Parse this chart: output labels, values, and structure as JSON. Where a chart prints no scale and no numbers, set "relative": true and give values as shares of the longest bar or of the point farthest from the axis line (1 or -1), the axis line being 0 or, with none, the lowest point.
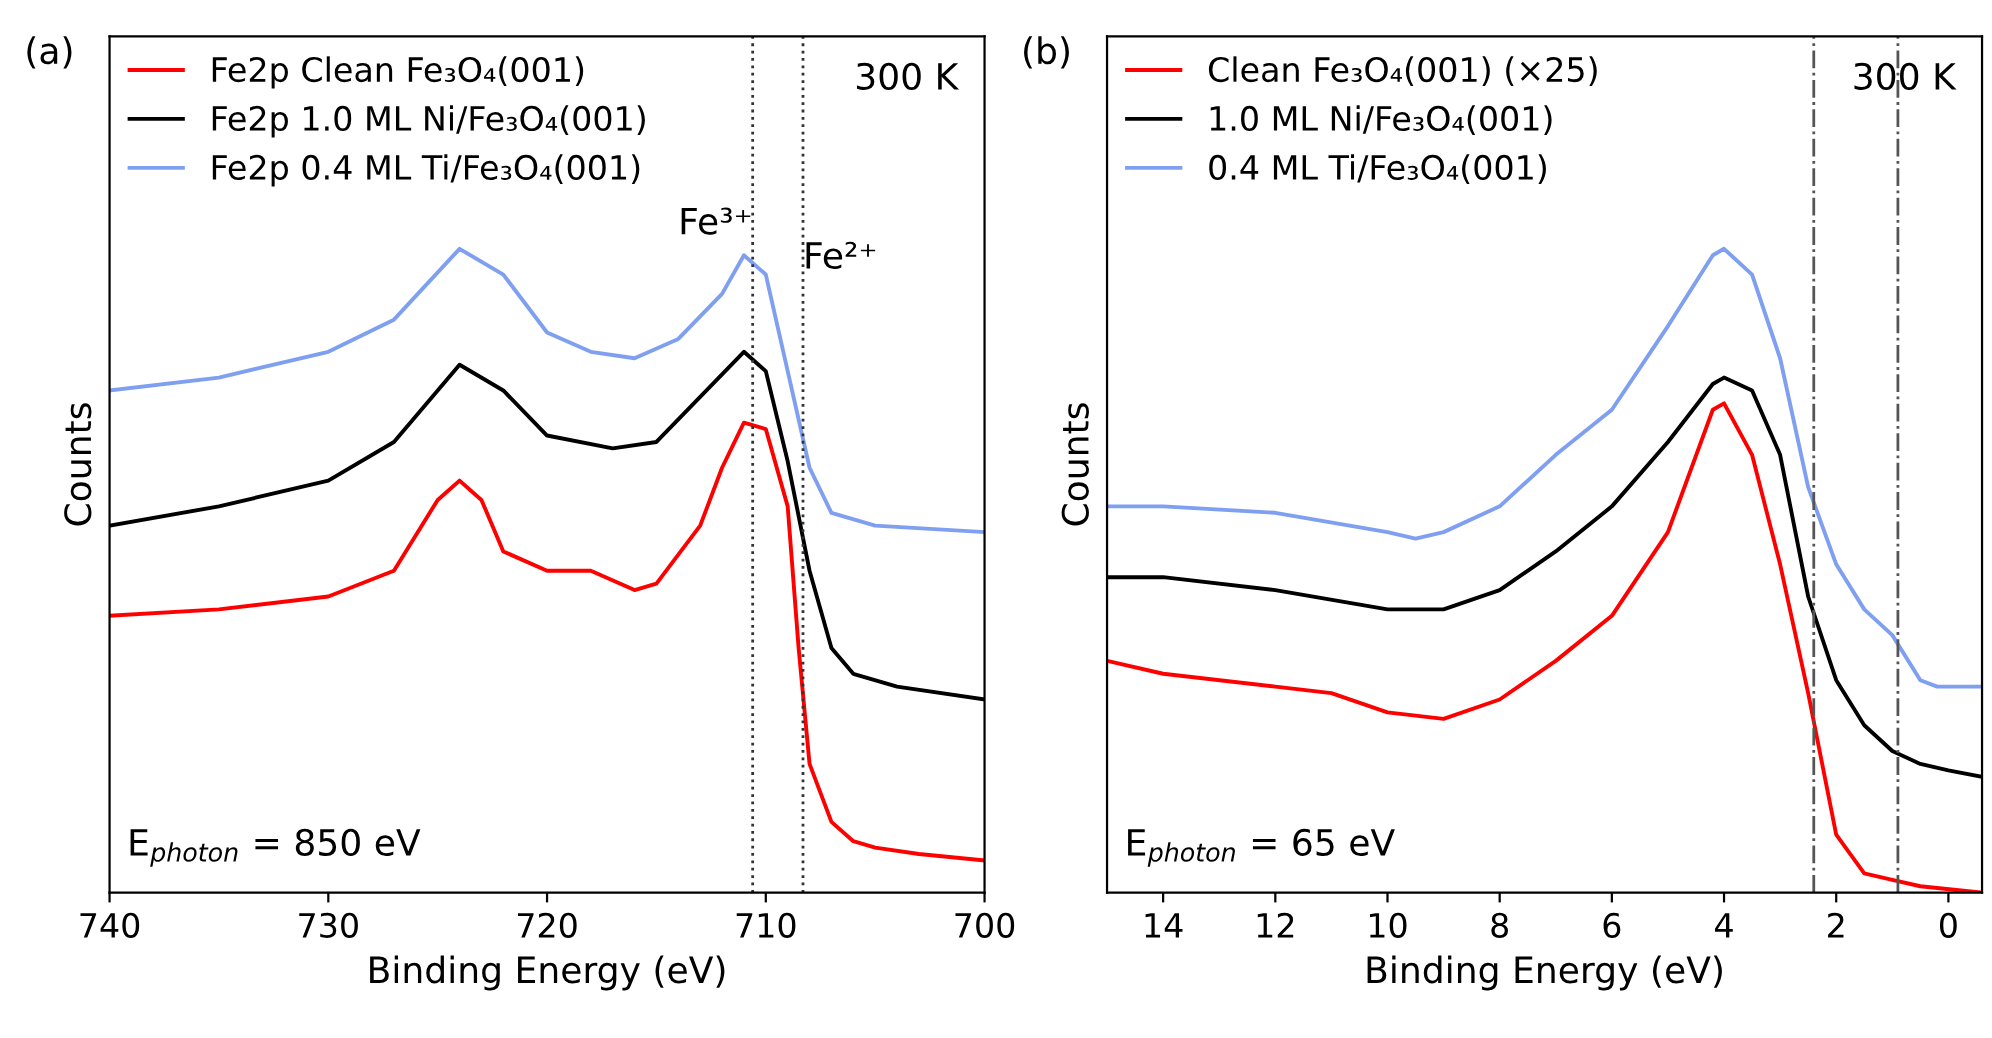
{
  "chart_data": [
    {
      "type": "line",
      "relative": true,
      "xlabel": "Binding Energy (eV)",
      "ylabel": "Counts",
      "xlim": [
        740,
        700
      ],
      "xticks": [
        740,
        730,
        720,
        710,
        700
      ],
      "tick_labels": "x",
      "legend": "top left",
      "grid": false,
      "line_style": "solid",
      "marker": "none",
      "annotations": [
        "(a)",
        "300 K",
        "E$_{photon}$ = 850 eV"
      ],
      "ref_lines": [
        {
          "axis": "x",
          "value": 710.6,
          "label": "Fe³⁺",
          "color": "#333333",
          "line_style": "dotted"
        },
        {
          "axis": "x",
          "value": 708.3,
          "label": "Fe²⁺",
          "color": "#333333",
          "line_style": "dotted"
        }
      ],
      "series": [
        {
          "name": "Fe2p Clean Fe₃O₄(001)",
          "color": "#ff0000",
          "x": [
            740,
            735,
            730,
            727,
            725,
            724,
            723,
            722,
            720,
            718,
            716,
            715,
            713,
            712,
            711,
            710,
            709,
            708.5,
            708,
            707,
            706,
            705,
            703,
            700
          ],
          "values": [
            0.43,
            0.44,
            0.46,
            0.5,
            0.61,
            0.64,
            0.61,
            0.53,
            0.5,
            0.5,
            0.47,
            0.48,
            0.57,
            0.66,
            0.73,
            0.72,
            0.6,
            0.38,
            0.2,
            0.11,
            0.08,
            0.07,
            0.06,
            0.05
          ]
        },
        {
          "name": "Fe2p 1.0 ML Ni/Fe₃O₄(001)",
          "color": "#000000",
          "x": [
            740,
            735,
            730,
            727,
            724,
            722,
            720,
            717,
            715,
            713,
            711,
            710,
            709,
            708,
            707,
            706,
            704,
            700
          ],
          "values": [
            0.57,
            0.6,
            0.64,
            0.7,
            0.82,
            0.78,
            0.71,
            0.69,
            0.7,
            0.77,
            0.84,
            0.81,
            0.67,
            0.5,
            0.38,
            0.34,
            0.32,
            0.3
          ]
        },
        {
          "name": "Fe2p 0.4 ML Ti/Fe₃O₄(001)",
          "color": "#7f9ff0",
          "x": [
            740,
            735,
            730,
            727,
            724,
            722,
            720,
            718,
            716,
            714,
            712,
            711,
            710,
            709,
            708,
            707,
            705,
            700
          ],
          "values": [
            0.78,
            0.8,
            0.84,
            0.89,
            1.0,
            0.96,
            0.87,
            0.84,
            0.83,
            0.86,
            0.93,
            0.99,
            0.96,
            0.81,
            0.66,
            0.59,
            0.57,
            0.56
          ]
        }
      ]
    },
    {
      "type": "line",
      "relative": true,
      "xlabel": "Binding Energy (eV)",
      "ylabel": "Counts",
      "xlim": [
        15,
        -0.6
      ],
      "xticks": [
        14,
        12,
        10,
        8,
        6,
        4,
        2,
        0
      ],
      "tick_labels": "x",
      "legend": "top left",
      "grid": false,
      "line_style": "solid",
      "marker": "none",
      "annotations": [
        "(b)",
        "300 K",
        "E$_{photon}$ = 65 eV"
      ],
      "ref_lines": [
        {
          "axis": "x",
          "value": 2.4,
          "color": "#555555",
          "line_style": "dashdot"
        },
        {
          "axis": "x",
          "value": 0.9,
          "color": "#555555",
          "line_style": "dashdot"
        }
      ],
      "series": [
        {
          "name": "Clean Fe₃O₄(001) (×25)",
          "color": "#ff0000",
          "x": [
            15,
            14,
            12,
            11,
            10,
            9,
            8,
            7,
            6,
            5,
            4.2,
            4,
            3.5,
            3,
            2.5,
            2,
            1.5,
            1,
            0.5,
            -0.6
          ],
          "values": [
            0.36,
            0.34,
            0.32,
            0.31,
            0.28,
            0.27,
            0.3,
            0.36,
            0.43,
            0.56,
            0.75,
            0.76,
            0.68,
            0.51,
            0.31,
            0.09,
            0.03,
            0.02,
            0.01,
            0.0
          ]
        },
        {
          "name": "1.0 ML Ni/Fe₃O₄(001)",
          "color": "#000000",
          "x": [
            15,
            14,
            12,
            10,
            9,
            8,
            7,
            6,
            5,
            4.2,
            4,
            3.5,
            3,
            2.5,
            2,
            1.5,
            1,
            0.5,
            0,
            -0.6
          ],
          "values": [
            0.49,
            0.49,
            0.47,
            0.44,
            0.44,
            0.47,
            0.53,
            0.6,
            0.7,
            0.79,
            0.8,
            0.78,
            0.68,
            0.46,
            0.33,
            0.26,
            0.22,
            0.2,
            0.19,
            0.18
          ]
        },
        {
          "name": "0.4 ML Ti/Fe₃O₄(001)",
          "color": "#7f9ff0",
          "x": [
            15,
            14,
            12,
            10,
            9.5,
            9,
            8,
            7,
            6,
            5,
            4.2,
            4,
            3.5,
            3,
            2.5,
            2,
            1.5,
            1,
            0.5,
            0.2,
            -0.6
          ],
          "values": [
            0.6,
            0.6,
            0.59,
            0.56,
            0.55,
            0.56,
            0.6,
            0.68,
            0.75,
            0.88,
            0.99,
            1.0,
            0.96,
            0.83,
            0.63,
            0.51,
            0.44,
            0.4,
            0.33,
            0.32,
            0.32
          ]
        }
      ]
    }
  ]
}
